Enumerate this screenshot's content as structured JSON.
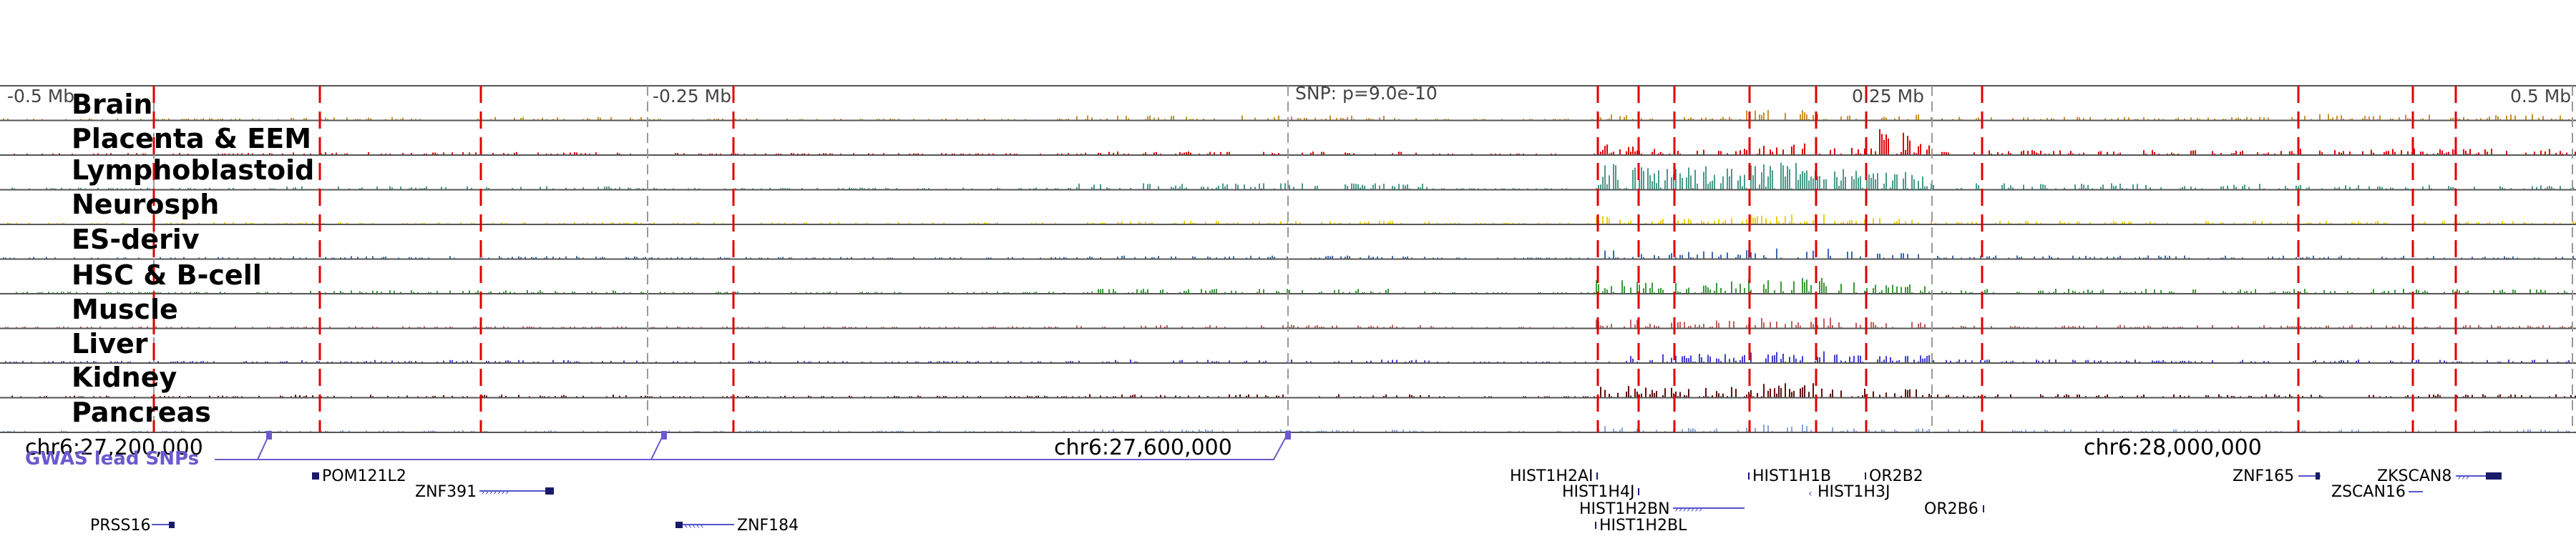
{
  "ruler": {
    "left_label": "-0.5 Mb",
    "mid_left_label": "-0.25 Mb",
    "snp_label": "SNP: p=9.0e-10",
    "mid_right_label": "0.25 Mb",
    "right_label": "0.5 Mb"
  },
  "tracks": [
    {
      "name": "Brain",
      "color": "#c8922a",
      "activity": [
        0.05,
        0.1,
        0.05,
        0.15,
        0.2,
        0.1,
        0.35,
        0.15,
        0.2,
        0.1,
        0.2
      ]
    },
    {
      "name": "Placenta & EEM",
      "color": "#e00000",
      "activity": [
        0.05,
        0.08,
        0.05,
        0.1,
        0.35,
        0.2,
        0.4,
        0.25,
        0.9,
        0.15,
        0.2
      ]
    },
    {
      "name": "Lymphoblastoid",
      "color": "#4a9a8a",
      "activity": [
        0.05,
        0.1,
        0.05,
        0.2,
        0.9,
        0.8,
        0.95,
        0.7,
        0.6,
        0.2,
        0.15
      ]
    },
    {
      "name": "Neurosph",
      "color": "#f0d000",
      "activity": [
        0.05,
        0.05,
        0.05,
        0.1,
        0.3,
        0.2,
        0.35,
        0.2,
        0.25,
        0.1,
        0.1
      ]
    },
    {
      "name": "ES-deriv",
      "color": "#3a6ab0",
      "activity": [
        0.05,
        0.08,
        0.05,
        0.1,
        0.3,
        0.25,
        0.35,
        0.25,
        0.2,
        0.1,
        0.1
      ]
    },
    {
      "name": "HSC & B-cell",
      "color": "#3a9a3a",
      "activity": [
        0.05,
        0.1,
        0.05,
        0.15,
        0.5,
        0.4,
        0.55,
        0.4,
        0.3,
        0.15,
        0.15
      ]
    },
    {
      "name": "Muscle",
      "color": "#c06060",
      "activity": [
        0.05,
        0.05,
        0.05,
        0.1,
        0.3,
        0.25,
        0.35,
        0.2,
        0.2,
        0.1,
        0.1
      ]
    },
    {
      "name": "Liver",
      "color": "#4040d0",
      "activity": [
        0.05,
        0.08,
        0.05,
        0.1,
        0.3,
        0.3,
        0.4,
        0.3,
        0.25,
        0.1,
        0.1
      ]
    },
    {
      "name": "Kidney",
      "color": "#601010",
      "activity": [
        0.05,
        0.08,
        0.05,
        0.1,
        0.4,
        0.35,
        0.5,
        0.3,
        0.3,
        0.1,
        0.1
      ]
    },
    {
      "name": "Pancreas",
      "color": "#8aa4d8",
      "activity": [
        0.05,
        0.05,
        0.05,
        0.08,
        0.2,
        0.15,
        0.25,
        0.15,
        0.15,
        0.08,
        0.08
      ]
    }
  ],
  "coordinates": {
    "left": "chr6:27,200,000",
    "middle": "chr6:27,600,000",
    "right": "chr6:28,000,000"
  },
  "gwas": {
    "label": "GWAS lead SNPs",
    "color": "#6a5acd"
  },
  "genes": [
    "POM121L2",
    "ZNF391",
    "PRSS16",
    "ZNF184",
    "HIST1H2AI",
    "HIST1H4J",
    "HIST1H2BN",
    "HIST1H2BL",
    "HIST1H1B",
    "HIST1H3J",
    "OR2B2",
    "OR2B6",
    "ZNF165",
    "ZKSCAN8",
    "ZSCAN16"
  ],
  "colors": {
    "highlight_line": "#e00000",
    "tick_line": "#999999",
    "track_border": "#555555",
    "gene_body": "#1a1a6a",
    "gene_strand": "#5555cc"
  }
}
